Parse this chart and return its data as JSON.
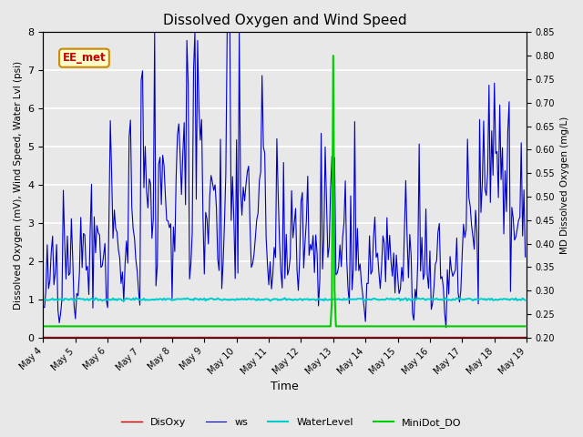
{
  "title": "Dissolved Oxygen and Wind Speed",
  "xlabel": "Time",
  "ylabel_left": "Dissolved Oxygen (mV), Wind Speed, Water Lvl (psi)",
  "ylabel_right": "MD Dissolved Oxygen (mg/L)",
  "ylim_left": [
    0.0,
    8.0
  ],
  "ylim_right": [
    0.2,
    0.85
  ],
  "annotation_text": "EE_met",
  "annotation_color": "#cc0000",
  "annotation_bg": "#ffffcc",
  "annotation_border": "#cc8800",
  "bg_color": "#e8e8e8",
  "plot_bg": "#e8e8e8",
  "ws_color": "#0000cc",
  "disoxy_color": "#cc0000",
  "waterlevel_color": "#00cccc",
  "minidot_color": "#00cc00",
  "legend_labels": [
    "DisOxy",
    "ws",
    "WaterLevel",
    "MiniDot_DO"
  ],
  "yticks_left": [
    0.0,
    1.0,
    2.0,
    3.0,
    4.0,
    5.0,
    6.0,
    7.0,
    8.0
  ],
  "yticks_right": [
    0.2,
    0.25,
    0.3,
    0.35,
    0.4,
    0.45,
    0.5,
    0.55,
    0.6,
    0.65,
    0.7,
    0.75,
    0.8,
    0.85
  ],
  "xtick_labels": [
    "May 4",
    "May 5",
    "May 6",
    "May 7",
    "May 8",
    "May 9",
    "May 10",
    "May 11",
    "May 12",
    "May 13",
    "May 14",
    "May 15",
    "May 16",
    "May 17",
    "May 18",
    "May 19"
  ]
}
